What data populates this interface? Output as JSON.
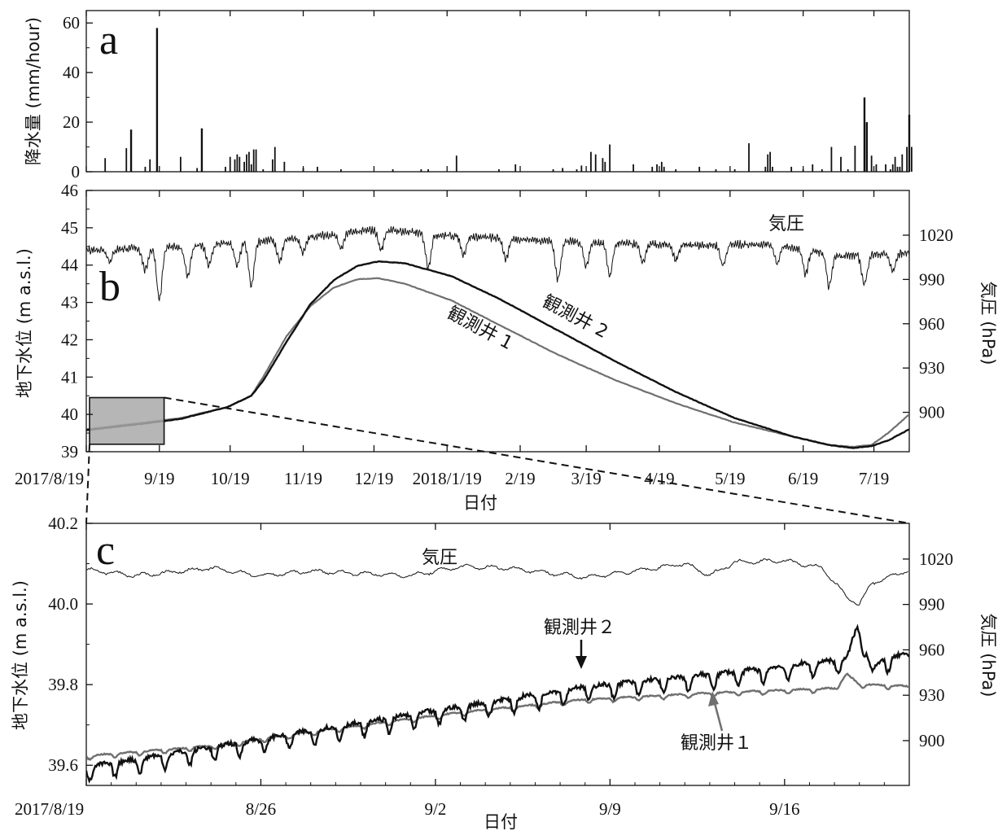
{
  "chart_data": [
    {
      "panel_label": "a",
      "type": "bar",
      "ylabel": "降水量 (mm/hour)",
      "ylim": [
        0,
        65
      ],
      "yticks": [
        "0",
        "20",
        "40",
        "60"
      ],
      "xlim": [
        0,
        349
      ],
      "xticks": {
        "positions": [
          0,
          31,
          61,
          92,
          122,
          153,
          184,
          212,
          243,
          273,
          304,
          334
        ]
      },
      "x_unit": "days since 2017/8/19",
      "bars": [
        [
          8,
          5.5
        ],
        [
          17,
          9.5
        ],
        [
          19,
          17
        ],
        [
          25,
          2
        ],
        [
          27,
          5
        ],
        [
          30,
          58
        ],
        [
          40,
          6
        ],
        [
          47,
          1.5
        ],
        [
          49,
          17.5
        ],
        [
          59,
          2
        ],
        [
          61,
          6
        ],
        [
          63,
          5
        ],
        [
          64,
          7
        ],
        [
          65,
          6
        ],
        [
          67,
          4
        ],
        [
          68,
          7
        ],
        [
          69,
          8
        ],
        [
          70,
          3
        ],
        [
          71,
          9
        ],
        [
          72,
          9
        ],
        [
          75,
          1
        ],
        [
          79,
          5
        ],
        [
          80,
          10
        ],
        [
          84,
          4
        ],
        [
          92,
          1.5
        ],
        [
          98,
          2
        ],
        [
          108,
          1
        ],
        [
          130,
          1
        ],
        [
          142,
          1
        ],
        [
          145,
          1
        ],
        [
          157,
          6.5
        ],
        [
          175,
          1
        ],
        [
          182,
          3
        ],
        [
          198,
          1
        ],
        [
          202,
          1.5
        ],
        [
          208,
          1
        ],
        [
          210,
          2.5
        ],
        [
          214,
          8
        ],
        [
          216,
          7
        ],
        [
          219,
          5.5
        ],
        [
          220,
          4
        ],
        [
          222,
          11
        ],
        [
          232,
          3
        ],
        [
          240,
          2
        ],
        [
          242,
          3
        ],
        [
          244,
          4
        ],
        [
          245,
          2
        ],
        [
          250,
          1
        ],
        [
          260,
          2
        ],
        [
          267,
          1
        ],
        [
          275,
          1
        ],
        [
          281,
          11.5
        ],
        [
          288,
          2
        ],
        [
          289,
          7
        ],
        [
          290,
          8
        ],
        [
          291,
          2
        ],
        [
          299,
          2
        ],
        [
          304,
          1
        ],
        [
          308,
          3
        ],
        [
          312,
          1
        ],
        [
          316,
          10
        ],
        [
          320,
          6
        ],
        [
          323,
          1
        ],
        [
          326,
          10.5
        ],
        [
          330,
          30
        ],
        [
          331,
          20
        ],
        [
          333,
          6.5
        ],
        [
          335,
          3
        ],
        [
          339,
          3
        ],
        [
          341,
          1
        ],
        [
          342,
          3
        ],
        [
          343,
          6
        ],
        [
          344,
          2
        ],
        [
          345,
          2
        ],
        [
          346,
          7
        ],
        [
          348,
          10
        ],
        [
          349,
          23
        ],
        [
          350,
          10
        ]
      ]
    },
    {
      "panel_label": "b",
      "type": "line",
      "xlabel": "日付",
      "ylabel": "地下水位 (m a.s.l.)",
      "ylabel_right": "気圧 (hPa)",
      "ylim": [
        39,
        46
      ],
      "yticks": [
        "39",
        "40",
        "41",
        "42",
        "43",
        "44",
        "45",
        "46"
      ],
      "ylim_right": [
        873.3,
        1050.3
      ],
      "yticks_right": [
        "900",
        "930",
        "960",
        "990",
        "1020"
      ],
      "xlim": [
        0,
        349
      ],
      "x_unit": "days since 2017/8/19",
      "xticks": [
        "2017/8/19",
        "9/19",
        "10/19",
        "11/19",
        "12/19",
        "2018/1/19",
        "2/19",
        "3/19",
        "4/19",
        "5/19",
        "6/19",
        "7/19"
      ],
      "xtick_positions": [
        0,
        31,
        61,
        92,
        122,
        153,
        184,
        212,
        243,
        273,
        304,
        334
      ],
      "inset_box": {
        "x": [
          0,
          33
        ],
        "y": [
          39.2,
          40.45
        ]
      },
      "series": [
        {
          "name": "観測井 1",
          "color": "#707070",
          "points": [
            [
              0,
              39.6
            ],
            [
              20,
              39.75
            ],
            [
              40,
              39.9
            ],
            [
              60,
              40.2
            ],
            [
              70,
              40.5
            ],
            [
              75,
              41.0
            ],
            [
              85,
              42.1
            ],
            [
              95,
              42.9
            ],
            [
              105,
              43.4
            ],
            [
              115,
              43.62
            ],
            [
              124,
              43.65
            ],
            [
              135,
              43.5
            ],
            [
              155,
              43.05
            ],
            [
              175,
              42.4
            ],
            [
              200,
              41.6
            ],
            [
              225,
              40.9
            ],
            [
              250,
              40.3
            ],
            [
              275,
              39.78
            ],
            [
              300,
              39.4
            ],
            [
              315,
              39.18
            ],
            [
              325,
              39.13
            ],
            [
              333,
              39.18
            ],
            [
              340,
              39.5
            ],
            [
              349,
              40.0
            ]
          ]
        },
        {
          "name": "観測井 2",
          "color": "#111111",
          "points": [
            [
              0,
              39.58
            ],
            [
              20,
              39.72
            ],
            [
              40,
              39.88
            ],
            [
              60,
              40.2
            ],
            [
              70,
              40.5
            ],
            [
              75,
              40.9
            ],
            [
              85,
              41.95
            ],
            [
              95,
              42.95
            ],
            [
              105,
              43.6
            ],
            [
              115,
              43.98
            ],
            [
              124,
              44.1
            ],
            [
              135,
              44.05
            ],
            [
              155,
              43.7
            ],
            [
              175,
              43.1
            ],
            [
              200,
              42.25
            ],
            [
              225,
              41.4
            ],
            [
              250,
              40.6
            ],
            [
              275,
              39.9
            ],
            [
              300,
              39.4
            ],
            [
              315,
              39.18
            ],
            [
              325,
              39.1
            ],
            [
              333,
              39.15
            ],
            [
              340,
              39.3
            ],
            [
              349,
              39.6
            ]
          ]
        },
        {
          "name": "気圧",
          "color": "#111111",
          "axis": "right",
          "baseline": [
            [
              0,
              1010
            ],
            [
              40,
              1012
            ],
            [
              90,
              1018
            ],
            [
              125,
              1024
            ],
            [
              150,
              1020
            ],
            [
              200,
              1016
            ],
            [
              250,
              1013
            ],
            [
              290,
              1014
            ],
            [
              320,
              1006
            ],
            [
              349,
              1008
            ]
          ],
          "dips": [
            [
              10,
              8
            ],
            [
              25,
              15
            ],
            [
              31,
              35
            ],
            [
              43,
              20
            ],
            [
              52,
              14
            ],
            [
              64,
              16
            ],
            [
              70,
              30
            ],
            [
              82,
              15
            ],
            [
              92,
              10
            ],
            [
              108,
              10
            ],
            [
              125,
              14
            ],
            [
              145,
              22
            ],
            [
              160,
              12
            ],
            [
              178,
              14
            ],
            [
              200,
              26
            ],
            [
              212,
              16
            ],
            [
              222,
              22
            ],
            [
              236,
              12
            ],
            [
              250,
              10
            ],
            [
              270,
              14
            ],
            [
              293,
              12
            ],
            [
              305,
              16
            ],
            [
              315,
              22
            ],
            [
              330,
              20
            ],
            [
              342,
              12
            ]
          ]
        }
      ],
      "annotations": [
        "気圧",
        "観測井 2",
        "観測井 1"
      ]
    },
    {
      "panel_label": "c",
      "type": "line",
      "xlabel": "日付",
      "ylabel": "地下水位 (m a.s.l.)",
      "ylabel_right": "気圧 (hPa)",
      "ylim": [
        39.55,
        40.2
      ],
      "yticks": [
        "39.6",
        "39.8",
        "40.0",
        "40.2"
      ],
      "ylim_right": [
        870.4,
        1043.6
      ],
      "yticks_right": [
        "900",
        "930",
        "960",
        "990",
        "1020"
      ],
      "xlim": [
        0,
        33
      ],
      "x_unit": "days since 2017/8/19",
      "xticks": [
        "2017/8/19",
        "8/26",
        "9/2",
        "9/9",
        "9/16"
      ],
      "xtick_positions": [
        0,
        7,
        14,
        21,
        28
      ],
      "series": [
        {
          "name": "観測井 1",
          "color": "#707070",
          "points": [
            [
              0,
              39.622
            ],
            [
              5,
              39.647
            ],
            [
              10,
              39.69
            ],
            [
              15,
              39.73
            ],
            [
              20,
              39.762
            ],
            [
              25,
              39.778
            ],
            [
              30,
              39.79
            ],
            [
              30.5,
              39.825
            ],
            [
              31,
              39.8
            ],
            [
              33,
              39.795
            ]
          ],
          "daily_amplitude": 0.008
        },
        {
          "name": "観測井 2",
          "color": "#111111",
          "points": [
            [
              0,
              39.59
            ],
            [
              5,
              39.64
            ],
            [
              10,
              39.69
            ],
            [
              15,
              39.74
            ],
            [
              20,
              39.79
            ],
            [
              25,
              39.82
            ],
            [
              28,
              39.84
            ],
            [
              30.5,
              39.86
            ],
            [
              30.9,
              39.94
            ],
            [
              31.2,
              39.9
            ],
            [
              31.5,
              39.83
            ],
            [
              32,
              39.86
            ],
            [
              33,
              39.87
            ]
          ],
          "daily_amplitude": 0.03
        },
        {
          "name": "気圧",
          "color": "#111111",
          "axis": "right",
          "points": [
            [
              0,
              1013
            ],
            [
              2,
              1009
            ],
            [
              5,
              1014
            ],
            [
              7,
              1009
            ],
            [
              9,
              1012
            ],
            [
              13,
              1009
            ],
            [
              15,
              1015
            ],
            [
              17,
              1014
            ],
            [
              20,
              1008
            ],
            [
              22,
              1012
            ],
            [
              24,
              1017
            ],
            [
              25,
              1009
            ],
            [
              26,
              1018
            ],
            [
              28,
              1019
            ],
            [
              29.5,
              1014
            ],
            [
              30.5,
              995
            ],
            [
              31,
              990
            ],
            [
              31.5,
              1004
            ],
            [
              32.5,
              1010
            ],
            [
              33,
              1013
            ]
          ]
        }
      ],
      "annotations": [
        "気圧",
        "観測井２",
        "観測井１"
      ]
    }
  ]
}
